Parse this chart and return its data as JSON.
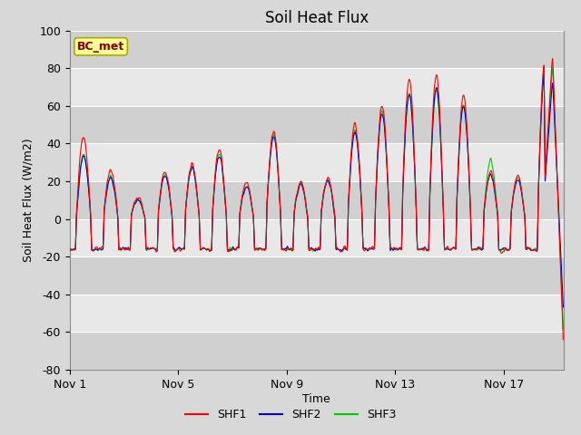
{
  "title": "Soil Heat Flux",
  "ylabel": "Soil Heat Flux (W/m2)",
  "xlabel": "Time",
  "ylim": [
    -80,
    100
  ],
  "x_ticks": [
    0,
    4,
    8,
    12,
    16
  ],
  "x_tick_labels": [
    "Nov 1",
    "Nov 5",
    "Nov 9",
    "Nov 13",
    "Nov 17"
  ],
  "y_ticks": [
    -80,
    -60,
    -40,
    -20,
    0,
    20,
    40,
    60,
    80,
    100
  ],
  "bg_color": "#d8d8d8",
  "plot_bg_color": "#e8e8e8",
  "band_color": "#d0d0d0",
  "line_colors": [
    "#ff0000",
    "#0000cc",
    "#00cc00"
  ],
  "line_labels": [
    "SHF1",
    "SHF2",
    "SHF3"
  ],
  "line_width": 0.8,
  "legend_box_color": "#ffff99",
  "legend_box_edge": "#aaaa00",
  "annotation_text": "BC_met",
  "annotation_color": "#880000",
  "title_fontsize": 12,
  "label_fontsize": 9,
  "tick_fontsize": 9,
  "legend_fontsize": 9
}
